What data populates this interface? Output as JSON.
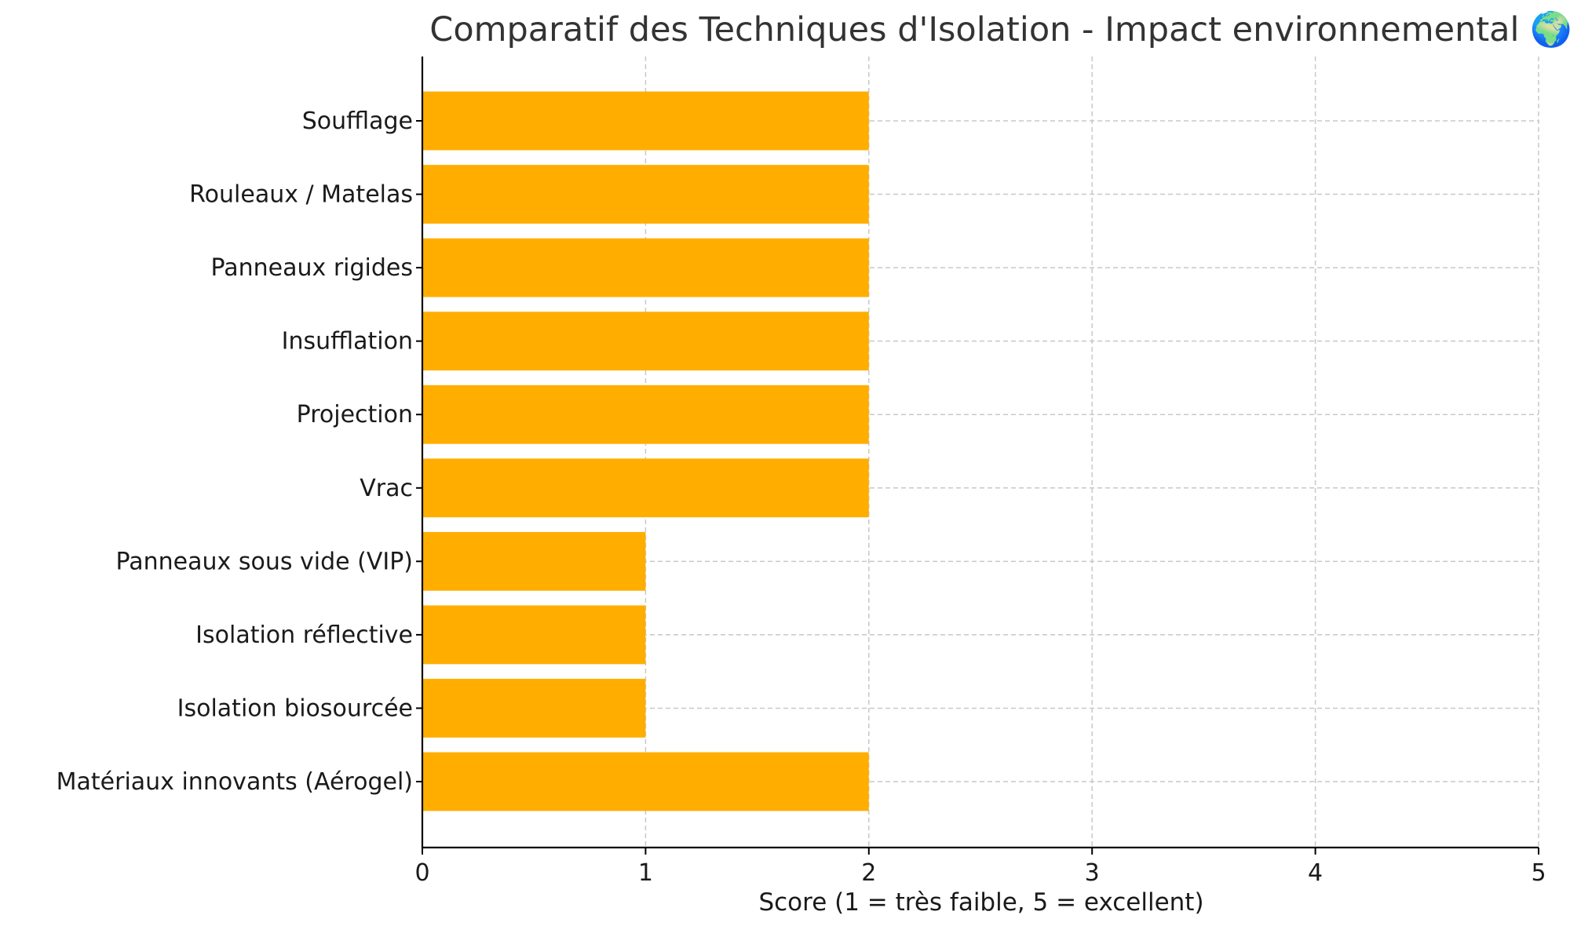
{
  "chart_data": {
    "type": "bar",
    "orientation": "horizontal",
    "title": "Comparatif des Techniques d'Isolation - Impact environnemental 🌍",
    "xlabel": "Score (1 = très faible, 5 = excellent)",
    "ylabel": "",
    "xlim": [
      0,
      5
    ],
    "xticks": [
      "0",
      "1",
      "2",
      "3",
      "4",
      "5"
    ],
    "grid": true,
    "bar_color": "#FFAE00",
    "categories": [
      "Soufflage",
      "Rouleaux / Matelas",
      "Panneaux rigides",
      "Insufflation",
      "Projection",
      "Vrac",
      "Panneaux sous vide (VIP)",
      "Isolation réflective",
      "Isolation biosourcée",
      "Matériaux innovants (Aérogel)"
    ],
    "values": [
      2,
      2,
      2,
      2,
      2,
      2,
      1,
      1,
      1,
      2
    ]
  }
}
